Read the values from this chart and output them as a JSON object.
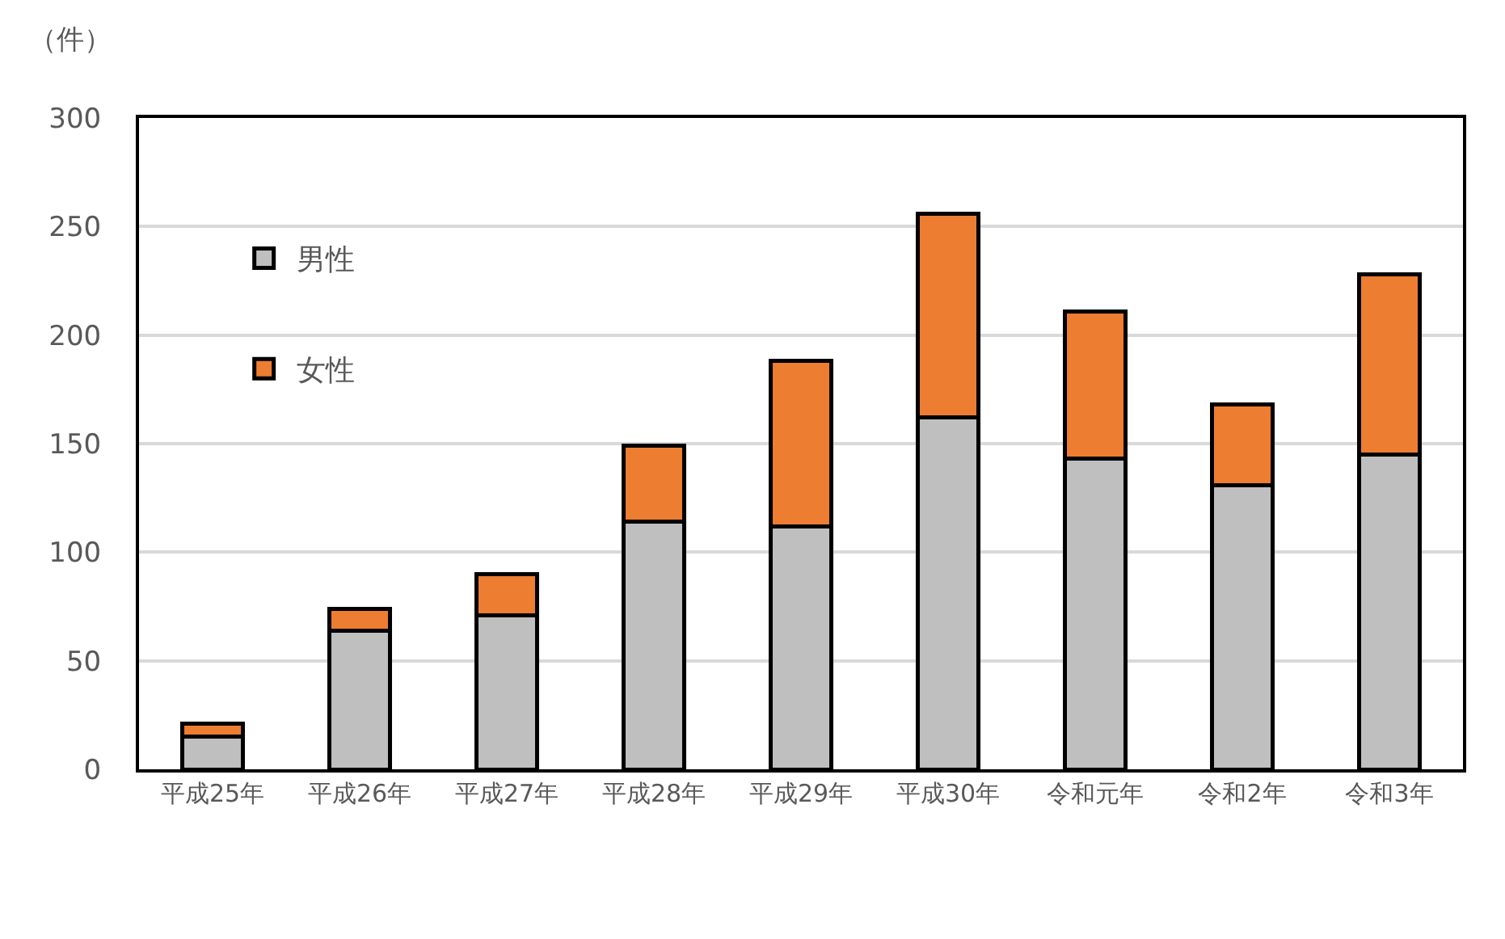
{
  "chart_data": {
    "type": "bar",
    "ylabel": "（件）",
    "categories": [
      "平成25年",
      "平成26年",
      "平成27年",
      "平成28年",
      "平成29年",
      "平成30年",
      "令和元年",
      "令和2年",
      "令和3年"
    ],
    "series": [
      {
        "name": "男性",
        "color": "#bfbfbf",
        "values": [
          15,
          64,
          71,
          114,
          112,
          162,
          143,
          131,
          145
        ]
      },
      {
        "name": "女性",
        "color": "#ed7d31",
        "values": [
          6,
          10,
          19,
          35,
          76,
          94,
          68,
          37,
          83
        ]
      }
    ],
    "stacked": true,
    "ylim": [
      0,
      300
    ],
    "yticks": [
      0,
      50,
      100,
      150,
      200,
      250,
      300
    ],
    "grid": "y",
    "legend": "top left"
  }
}
